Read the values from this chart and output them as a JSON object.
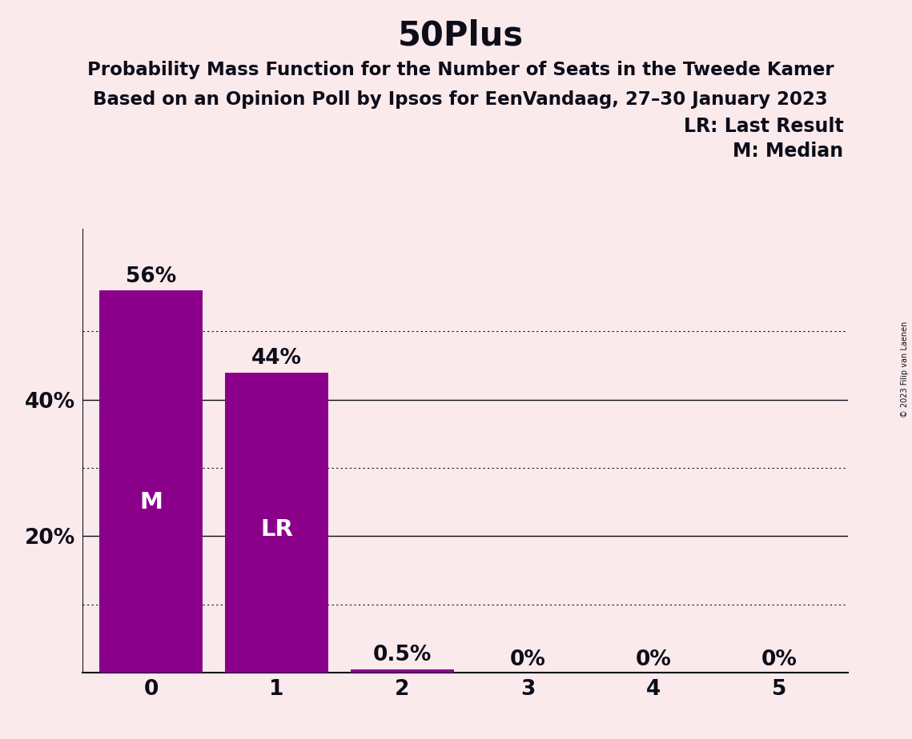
{
  "title": "50Plus",
  "subtitle1": "Probability Mass Function for the Number of Seats in the Tweede Kamer",
  "subtitle2": "Based on an Opinion Poll by Ipsos for EenVandaag, 27–30 January 2023",
  "copyright_text": "© 2023 Filip van Laenen",
  "categories": [
    0,
    1,
    2,
    3,
    4,
    5
  ],
  "values": [
    0.56,
    0.44,
    0.005,
    0.0,
    0.0,
    0.0
  ],
  "bar_labels": [
    "56%",
    "44%",
    "0.5%",
    "0%",
    "0%",
    "0%"
  ],
  "bar_color": "#8B008B",
  "background_color": "#FAEAEC",
  "text_color": "#0d0d1a",
  "bar_text_color": "#ffffff",
  "median_bar_idx": 0,
  "last_result_bar_idx": 1,
  "legend_lr": "LR: Last Result",
  "legend_m": "M: Median",
  "ylim": [
    0,
    0.65
  ],
  "solid_grid_values": [
    0.2,
    0.4
  ],
  "dotted_grid_values": [
    0.1,
    0.3,
    0.5
  ],
  "title_fontsize": 30,
  "subtitle_fontsize": 16.5,
  "tick_fontsize": 19,
  "bar_label_fontsize": 19,
  "bar_inner_label_fontsize": 21,
  "legend_fontsize": 17,
  "copyright_fontsize": 7,
  "ytick_positions": [
    0.2,
    0.4
  ],
  "ytick_labels": [
    "20%",
    "40%"
  ],
  "bar_width": 0.82
}
